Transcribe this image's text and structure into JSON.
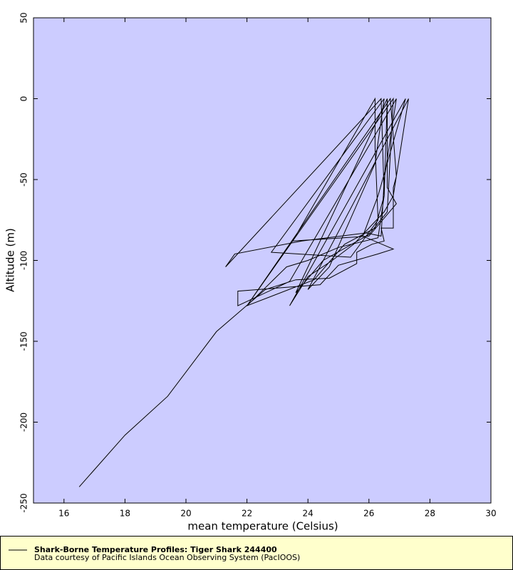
{
  "chart_data": {
    "type": "line",
    "xlabel": "mean temperature (Celsius)",
    "ylabel": "Altitude (m)",
    "x": [
      16.5,
      18.0,
      19.4,
      21.0,
      22.6,
      23.6,
      24.7,
      25.6,
      25.6,
      26.1,
      26.5,
      26.4,
      26.8,
      26.8,
      26.9,
      26.7,
      22.0,
      23.3,
      24.0,
      25.0,
      26.3,
      26.5,
      26.6,
      23.6,
      24.5,
      26.0,
      26.6,
      26.8,
      22.0,
      24.2,
      25.2,
      26.2,
      26.5,
      26.4,
      21.3,
      21.6,
      23.8,
      25.9,
      26.4,
      26.5,
      26.9,
      23.4,
      21.7,
      21.7,
      24.4,
      25.0,
      26.3,
      26.8,
      25.8,
      26.3,
      27.2,
      23.4,
      24.0,
      24.8,
      25.5,
      26.5,
      26.8,
      27.3,
      24.0,
      24.7,
      26.2,
      26.5,
      22.8,
      25.4,
      26.3,
      26.2,
      26.2,
      23.5,
      26.0,
      26.9,
      26.6,
      26.6
    ],
    "series": [
      {
        "name": "Shark-Borne Temperature Profiles: Tiger Shark 244400",
        "color": "#000000",
        "values": [
          -240,
          -208,
          -184,
          -144,
          -118,
          -112,
          -111,
          -102,
          -95,
          -90,
          -88,
          -80,
          -80,
          -55,
          -48,
          0,
          -128,
          -104,
          -100,
          -92,
          -86,
          -60,
          0,
          -120,
          -100,
          -84,
          -70,
          0,
          -128,
          -112,
          -90,
          -80,
          -60,
          0,
          -104,
          -96,
          -88,
          -83,
          -85,
          -50,
          0,
          -113,
          -128,
          -119,
          -115,
          -103,
          -96,
          -93,
          -85,
          -60,
          0,
          -128,
          -110,
          -100,
          -90,
          -70,
          -60,
          0,
          -118,
          -104,
          -40,
          0,
          -95,
          -98,
          -75,
          -30,
          0,
          -88,
          -85,
          -65,
          -55,
          0
        ]
      }
    ],
    "credit": "Data courtesy of Pacific Islands Ocean Observing System (PacIOOS)",
    "xlim": [
      15,
      30
    ],
    "xticks": [
      16,
      18,
      20,
      22,
      24,
      26,
      28,
      30
    ],
    "ylim": [
      -250,
      50
    ],
    "yticks": [
      50,
      0,
      -50,
      -100,
      -150,
      -200,
      -250
    ],
    "plot_background": "#ccccff",
    "legend_background": "#ffffcc"
  }
}
